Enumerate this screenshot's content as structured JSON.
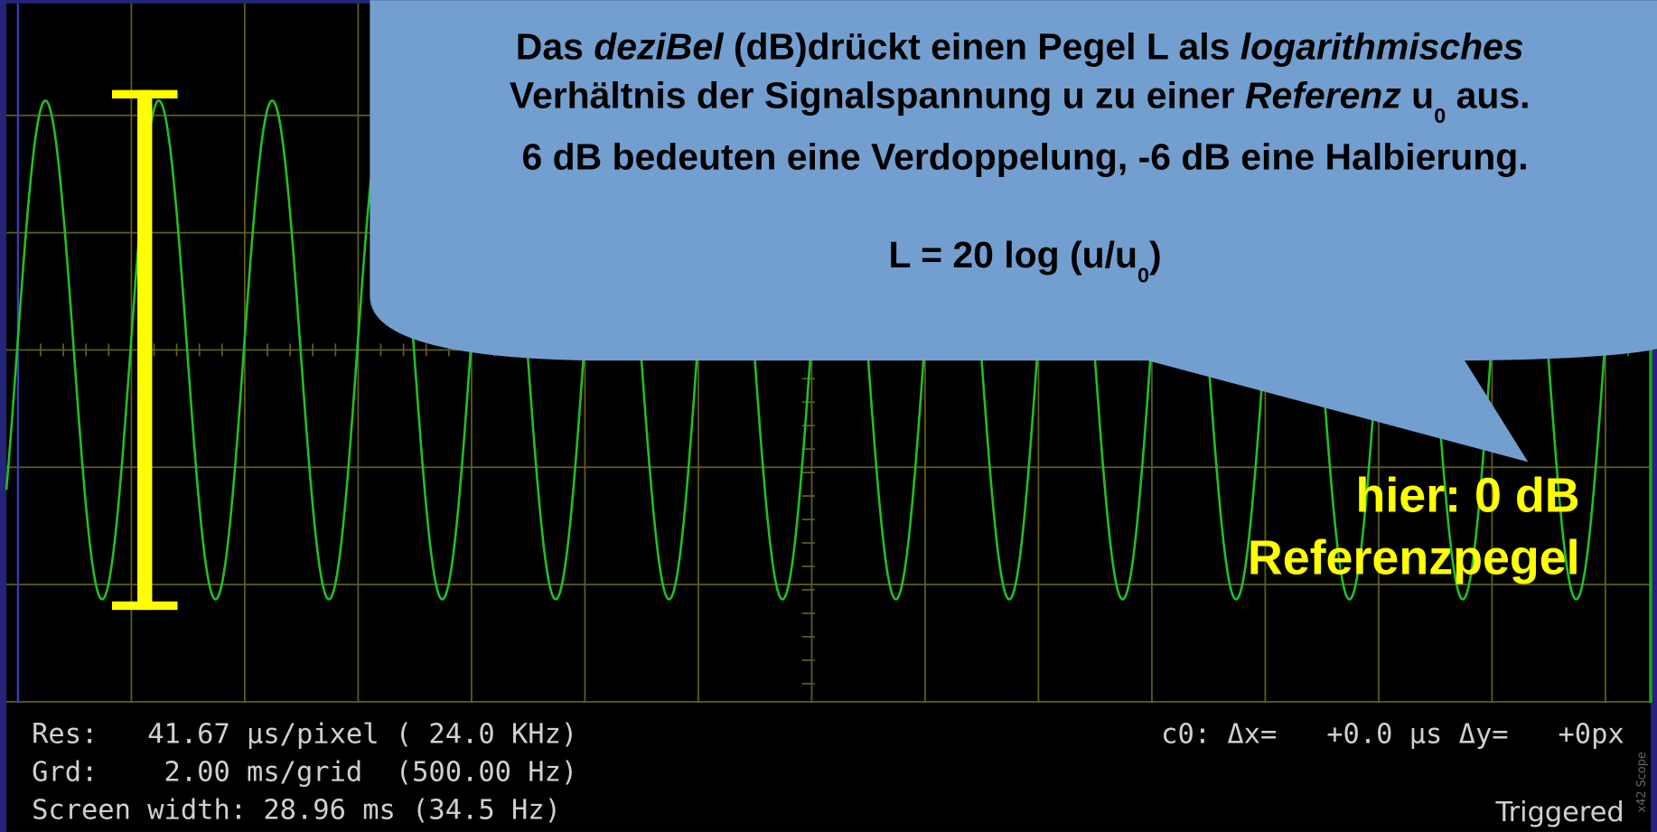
{
  "callout": {
    "line1": [
      "Das ",
      "deziBel",
      " (dB)drückt einen Pegel L als ",
      "logarithmisches"
    ],
    "line2": [
      "Verhältnis der Signalspannung u zu einer ",
      "Referenz",
      " u",
      "0",
      " aus."
    ],
    "line3": "6 dB bedeuten eine Verdoppelung, -6 dB eine Halbierung.",
    "formula": [
      "L = 20 log (u/u",
      "0",
      ")"
    ]
  },
  "annotation": [
    "hier: 0 dB",
    "Referenzpegel"
  ],
  "status": {
    "left": [
      "Res:   41.67 µs/pixel ( 24.0 KHz)",
      "Grd:    2.00 ms/grid  (500.00 Hz)",
      "Screen width: 28.96 ms (34.5 Hz)"
    ],
    "cursor": "c0: Δx=   +0.0 µs Δy=   +0px",
    "trigger": "Triggered",
    "brand": "x42 Scope"
  }
}
